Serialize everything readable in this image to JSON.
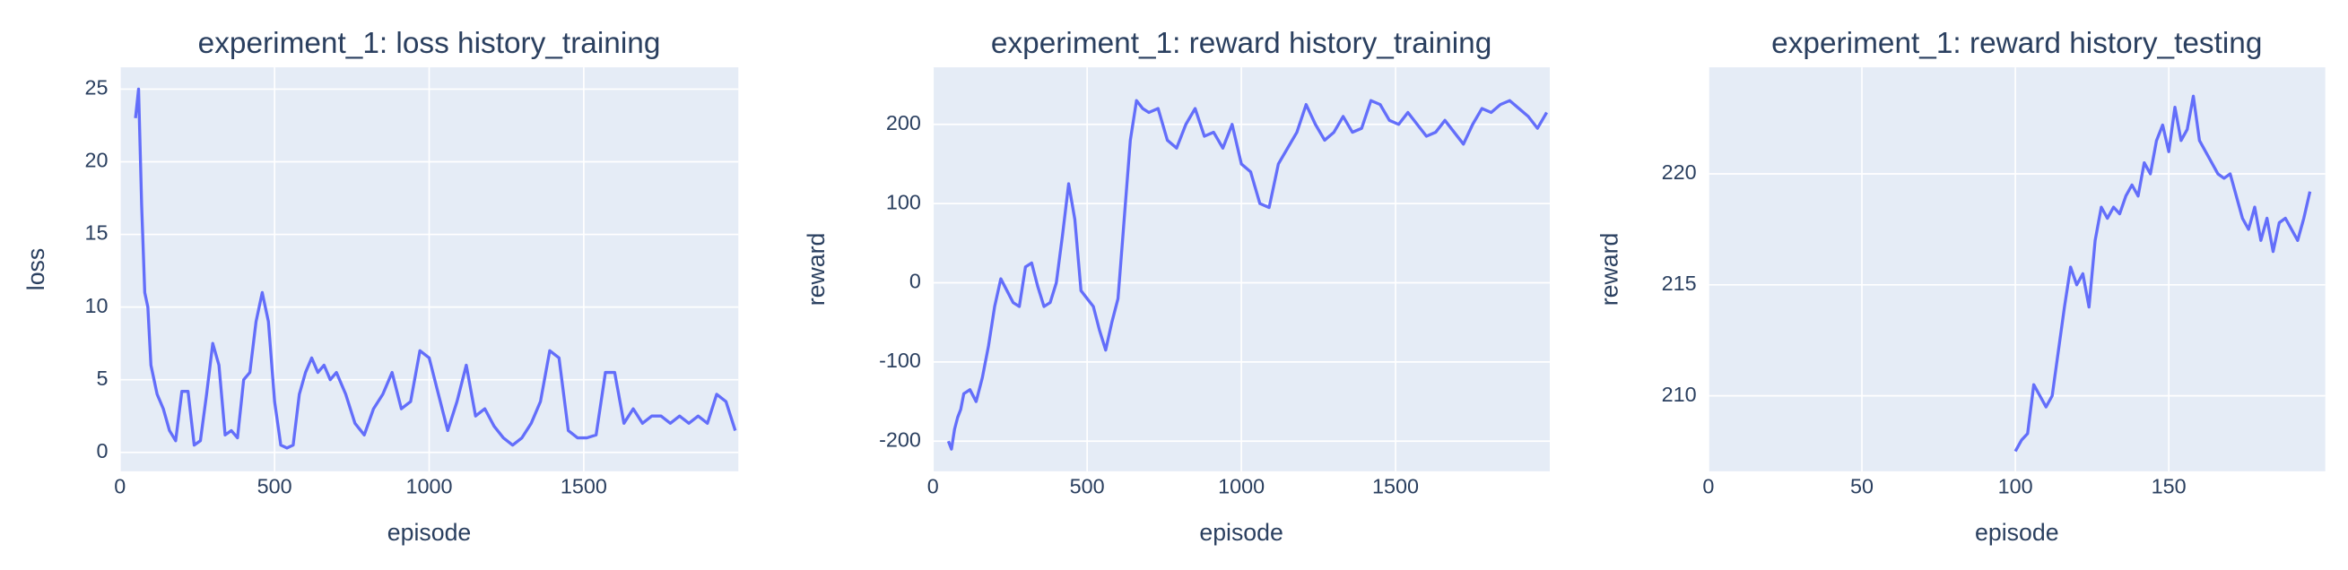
{
  "chart_data": [
    {
      "type": "line",
      "title": "experiment_1: loss history_training",
      "x_label": "episode",
      "y_label": "loss",
      "x": [
        50,
        60,
        70,
        80,
        90,
        100,
        120,
        140,
        160,
        180,
        200,
        220,
        240,
        260,
        280,
        300,
        320,
        340,
        360,
        380,
        400,
        420,
        440,
        460,
        480,
        500,
        520,
        540,
        560,
        580,
        600,
        620,
        640,
        660,
        680,
        700,
        730,
        760,
        790,
        820,
        850,
        880,
        910,
        940,
        970,
        1000,
        1030,
        1060,
        1090,
        1120,
        1150,
        1180,
        1210,
        1240,
        1270,
        1300,
        1330,
        1360,
        1390,
        1420,
        1450,
        1480,
        1510,
        1540,
        1570,
        1600,
        1630,
        1660,
        1690,
        1720,
        1750,
        1780,
        1810,
        1840,
        1870,
        1900,
        1930,
        1960,
        1990
      ],
      "values": [
        23,
        25,
        17,
        11,
        10,
        6,
        4,
        3,
        1.5,
        0.8,
        4.2,
        4.2,
        0.5,
        0.8,
        4,
        7.5,
        6,
        1.2,
        1.5,
        1,
        5,
        5.5,
        9,
        11,
        9,
        3.5,
        0.5,
        0.3,
        0.5,
        4,
        5.5,
        6.5,
        5.5,
        6,
        5,
        5.5,
        4,
        2,
        1.2,
        3,
        4,
        5.5,
        3,
        3.5,
        7,
        6.5,
        4,
        1.5,
        3.5,
        6,
        2.5,
        3,
        1.8,
        1,
        0.5,
        1,
        2,
        3.5,
        7,
        6.5,
        1.5,
        1,
        1,
        1.2,
        5.5,
        5.5,
        2,
        3,
        2,
        2.5,
        2.5,
        2,
        2.5,
        2,
        2.5,
        2,
        4,
        3.5,
        1.5
      ],
      "color": "#636efa",
      "xlim": [
        0,
        2000
      ],
      "ylim": [
        -1.3,
        26.5
      ],
      "xticks": [
        0,
        500,
        1000,
        1500
      ],
      "yticks": [
        0,
        5,
        10,
        15,
        20,
        25
      ],
      "grid": true
    },
    {
      "type": "line",
      "title": "experiment_1: reward history_training",
      "x_label": "episode",
      "y_label": "reward",
      "x": [
        50,
        60,
        70,
        80,
        90,
        100,
        120,
        140,
        160,
        180,
        200,
        220,
        240,
        260,
        280,
        300,
        320,
        340,
        360,
        380,
        400,
        420,
        440,
        460,
        480,
        500,
        520,
        540,
        560,
        580,
        600,
        620,
        640,
        660,
        680,
        700,
        730,
        760,
        790,
        820,
        850,
        880,
        910,
        940,
        970,
        1000,
        1030,
        1060,
        1090,
        1120,
        1150,
        1180,
        1210,
        1240,
        1270,
        1300,
        1330,
        1360,
        1390,
        1420,
        1450,
        1480,
        1510,
        1540,
        1570,
        1600,
        1630,
        1660,
        1690,
        1720,
        1750,
        1780,
        1810,
        1840,
        1870,
        1900,
        1930,
        1960,
        1990
      ],
      "values": [
        -200,
        -210,
        -185,
        -170,
        -160,
        -140,
        -135,
        -150,
        -120,
        -80,
        -30,
        5,
        -10,
        -25,
        -30,
        20,
        25,
        -5,
        -30,
        -25,
        0,
        60,
        125,
        80,
        -10,
        -20,
        -30,
        -60,
        -85,
        -50,
        -20,
        80,
        180,
        230,
        220,
        215,
        220,
        180,
        170,
        200,
        220,
        185,
        190,
        170,
        200,
        150,
        140,
        100,
        95,
        150,
        170,
        190,
        225,
        200,
        180,
        190,
        210,
        190,
        195,
        230,
        225,
        205,
        200,
        215,
        200,
        185,
        190,
        205,
        190,
        175,
        200,
        220,
        215,
        225,
        230,
        220,
        210,
        195,
        215
      ],
      "color": "#636efa",
      "xlim": [
        0,
        2000
      ],
      "ylim": [
        -238,
        272
      ],
      "xticks": [
        0,
        500,
        1000,
        1500
      ],
      "yticks": [
        -200,
        -100,
        0,
        100,
        200
      ],
      "grid": true
    },
    {
      "type": "line",
      "title": "experiment_1: reward history_testing",
      "x_label": "episode",
      "y_label": "reward",
      "x": [
        100,
        102,
        104,
        106,
        108,
        110,
        112,
        114,
        116,
        118,
        120,
        122,
        124,
        126,
        128,
        130,
        132,
        134,
        136,
        138,
        140,
        142,
        144,
        146,
        148,
        150,
        152,
        154,
        156,
        158,
        160,
        162,
        164,
        166,
        168,
        170,
        172,
        174,
        176,
        178,
        180,
        182,
        184,
        186,
        188,
        190,
        192,
        194,
        196
      ],
      "values": [
        207.5,
        208,
        208.3,
        210.5,
        210,
        209.5,
        210,
        212,
        214,
        215.8,
        215,
        215.5,
        214,
        217,
        218.5,
        218,
        218.5,
        218.2,
        219,
        219.5,
        219,
        220.5,
        220,
        221.5,
        222.2,
        221,
        223,
        221.5,
        222,
        223.5,
        221.5,
        221,
        220.5,
        220,
        219.8,
        220,
        219,
        218,
        217.5,
        218.5,
        217,
        218,
        216.5,
        217.8,
        218,
        217.5,
        217,
        218,
        219.2
      ],
      "color": "#636efa",
      "xlim": [
        0,
        201
      ],
      "ylim": [
        206.6,
        224.8
      ],
      "xticks": [
        0,
        50,
        100,
        150
      ],
      "yticks": [
        210,
        215,
        220
      ],
      "grid": true
    }
  ]
}
